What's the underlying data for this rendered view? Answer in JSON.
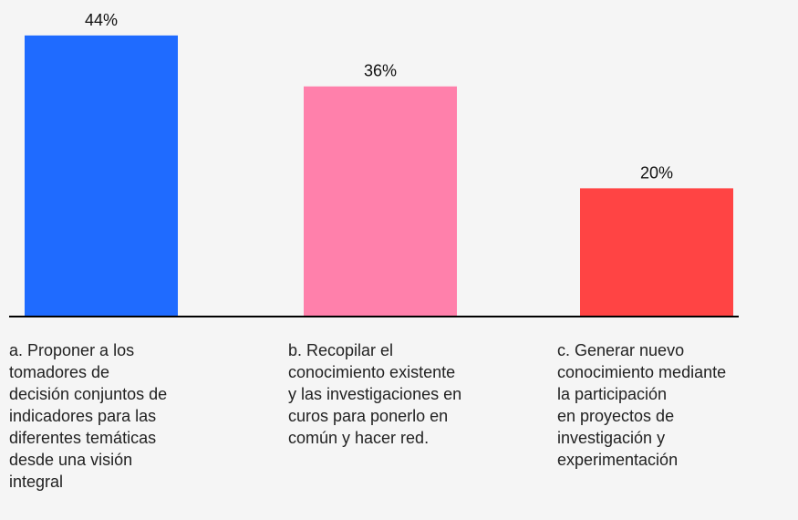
{
  "chart_data": {
    "type": "bar",
    "categories": [
      "a. Proponer a los\ntomadores de\ndecisión conjuntos de\nindicadores para las\ndiferentes temáticas\ndesde una visión\nintegral",
      "b. Recopilar el\nconocimiento existente\ny las investigaciones en\ncuros para ponerlo en\ncomún y hacer red.",
      "c. Generar nuevo\nconocimiento mediante\nla participación\nen proyectos de\ninvestigación y\nexperimentación"
    ],
    "values": [
      44,
      36,
      20
    ],
    "value_labels": [
      "44%",
      "36%",
      "20%"
    ],
    "colors": [
      "#1f6bff",
      "#ff80ab",
      "#ff4444"
    ]
  }
}
